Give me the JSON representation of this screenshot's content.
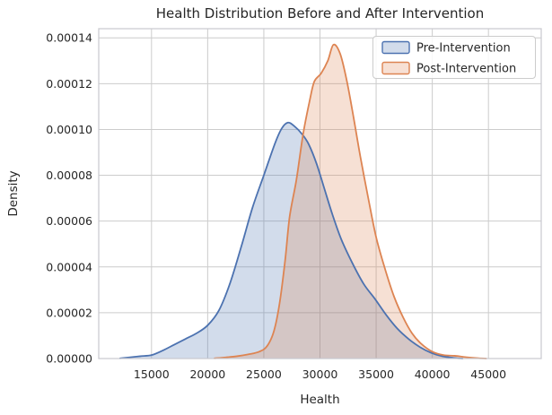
{
  "chart_data": {
    "type": "area",
    "subtype": "kde-density",
    "title": "Health Distribution Before and After Intervention",
    "xlabel": "Health",
    "ylabel": "Density",
    "xlim": [
      10300,
      49700
    ],
    "ylim": [
      0,
      0.000144
    ],
    "x_ticks": [
      15000,
      20000,
      25000,
      30000,
      35000,
      40000,
      45000
    ],
    "y_ticks": [
      0.0,
      2e-05,
      4e-05,
      6e-05,
      8e-05,
      0.0001,
      0.00012,
      0.00014
    ],
    "y_tick_decimals": 5,
    "grid": true,
    "grid_color": "#cccccc",
    "spine_color": "#c9c9d0",
    "text_color": "#262626",
    "legend_position": "upper right",
    "density_scale": 1e-05,
    "series": [
      {
        "name": "Pre-Intervention",
        "color": "#4c72b0",
        "fill_alpha": 0.25,
        "peak": {
          "x": 27150,
          "density": 0.000103
        },
        "points": [
          [
            12200,
            0.01
          ],
          [
            13000,
            0.05
          ],
          [
            14000,
            0.1
          ],
          [
            15000,
            0.15
          ],
          [
            16000,
            0.35
          ],
          [
            17000,
            0.6
          ],
          [
            18000,
            0.85
          ],
          [
            19000,
            1.1
          ],
          [
            20000,
            1.45
          ],
          [
            21000,
            2.1
          ],
          [
            22000,
            3.3
          ],
          [
            23000,
            4.9
          ],
          [
            24000,
            6.6
          ],
          [
            25000,
            8.0
          ],
          [
            26000,
            9.4
          ],
          [
            26600,
            10.05
          ],
          [
            27150,
            10.3
          ],
          [
            27700,
            10.15
          ],
          [
            28400,
            9.8
          ],
          [
            29000,
            9.35
          ],
          [
            29700,
            8.5
          ],
          [
            30400,
            7.4
          ],
          [
            31100,
            6.3
          ],
          [
            31900,
            5.2
          ],
          [
            32900,
            4.15
          ],
          [
            33900,
            3.25
          ],
          [
            34900,
            2.6
          ],
          [
            35900,
            1.9
          ],
          [
            36900,
            1.3
          ],
          [
            37900,
            0.85
          ],
          [
            38900,
            0.5
          ],
          [
            39900,
            0.25
          ],
          [
            40900,
            0.1
          ],
          [
            41900,
            0.03
          ],
          [
            42700,
            0
          ]
        ]
      },
      {
        "name": "Post-Intervention",
        "color": "#dd8452",
        "fill_alpha": 0.25,
        "peak": {
          "x": 31200,
          "density": 0.000137
        },
        "points": [
          [
            20600,
            0.01
          ],
          [
            21600,
            0.05
          ],
          [
            22600,
            0.1
          ],
          [
            23600,
            0.18
          ],
          [
            24600,
            0.3
          ],
          [
            25300,
            0.55
          ],
          [
            25900,
            1.2
          ],
          [
            26400,
            2.4
          ],
          [
            26900,
            4.3
          ],
          [
            27300,
            6.2
          ],
          [
            27900,
            7.8
          ],
          [
            28500,
            9.8
          ],
          [
            29100,
            11.3
          ],
          [
            29500,
            12.1
          ],
          [
            30100,
            12.45
          ],
          [
            30700,
            13.0
          ],
          [
            31200,
            13.7
          ],
          [
            31800,
            13.3
          ],
          [
            32400,
            12.1
          ],
          [
            33000,
            10.5
          ],
          [
            33600,
            8.8
          ],
          [
            34300,
            7.0
          ],
          [
            35000,
            5.3
          ],
          [
            35800,
            3.9
          ],
          [
            36600,
            2.7
          ],
          [
            37400,
            1.8
          ],
          [
            38200,
            1.1
          ],
          [
            39000,
            0.65
          ],
          [
            40000,
            0.3
          ],
          [
            41000,
            0.15
          ],
          [
            42000,
            0.12
          ],
          [
            43000,
            0.06
          ],
          [
            44000,
            0.02
          ],
          [
            44800,
            0
          ]
        ]
      }
    ]
  },
  "legend": {
    "items": [
      {
        "label": "Pre-Intervention"
      },
      {
        "label": "Post-Intervention"
      }
    ]
  }
}
